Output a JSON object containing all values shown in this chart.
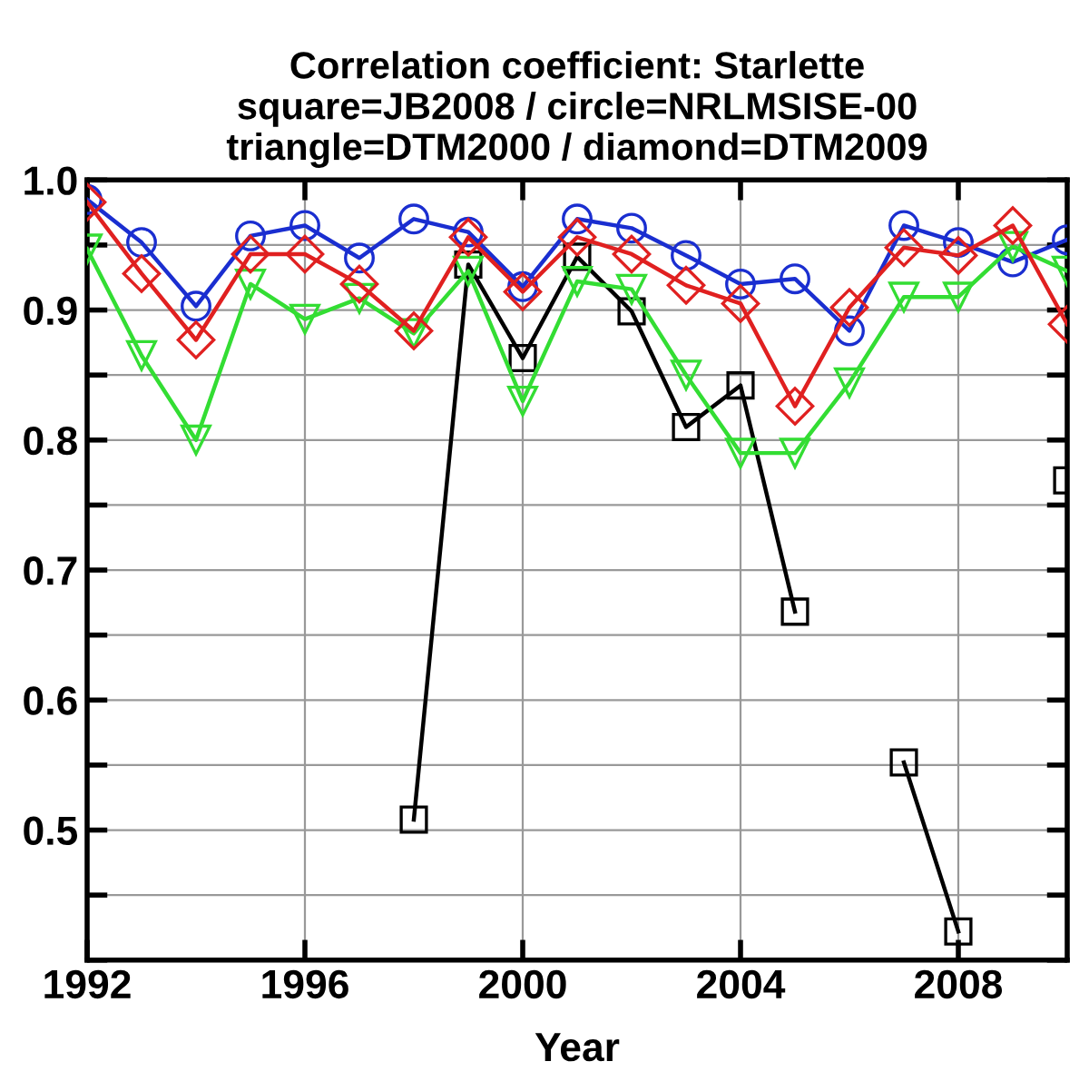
{
  "chart_data": {
    "type": "line",
    "title": "Correlation coefficient: Starlette\nsquare=JB2008 / circle=NRLMSISE-00\ntriangle=DTM2000 / diamond=DTM2009",
    "xlabel": "Year",
    "x": [
      1992,
      1993,
      1994,
      1995,
      1996,
      1997,
      1998,
      1999,
      2000,
      2001,
      2002,
      2003,
      2004,
      2005,
      2006,
      2007,
      2008,
      2009,
      2010
    ],
    "series": [
      {
        "color": "#1a2ed0",
        "marker": "circle",
        "values": [
          0.985,
          0.952,
          0.903,
          0.957,
          0.965,
          0.94,
          0.97,
          0.96,
          0.918,
          0.97,
          0.963,
          0.942,
          0.92,
          0.924,
          0.884,
          0.965,
          0.952,
          0.937,
          0.954
        ]
      },
      {
        "color": "#000000",
        "marker": "square",
        "values": [
          null,
          null,
          null,
          null,
          null,
          null,
          0.508,
          0.935,
          0.863,
          0.941,
          0.899,
          0.81,
          0.842,
          0.668,
          null,
          0.552,
          0.422,
          null,
          0.769
        ]
      },
      {
        "color": "#33dd33",
        "marker": "triangle",
        "values": [
          0.947,
          0.865,
          0.8,
          0.92,
          0.893,
          0.909,
          0.882,
          0.93,
          0.83,
          0.922,
          0.916,
          0.85,
          0.79,
          0.79,
          0.844,
          0.91,
          0.91,
          0.949,
          0.93
        ]
      },
      {
        "color": "#e02020",
        "marker": "diamond",
        "values": [
          0.983,
          0.928,
          0.877,
          0.943,
          0.943,
          0.92,
          0.884,
          0.956,
          0.914,
          0.956,
          0.943,
          0.919,
          0.905,
          0.826,
          0.902,
          0.948,
          0.942,
          0.965,
          0.889
        ]
      }
    ],
    "xlim": [
      1992,
      2010
    ],
    "xticks": [
      1992,
      1996,
      2000,
      2004,
      2008
    ],
    "ylim": [
      0.4,
      1.0
    ],
    "yticks": [
      {
        "value": 0.4,
        "label": null
      },
      {
        "value": 0.45,
        "label": null
      },
      0.5,
      {
        "value": 0.55,
        "label": null
      },
      0.6,
      {
        "value": 0.65,
        "label": null
      },
      0.7,
      {
        "value": 0.75,
        "label": null
      },
      0.8,
      {
        "value": 0.85,
        "label": null
      },
      0.9,
      {
        "value": 0.95,
        "label": null
      },
      {
        "value": 1.0,
        "label": "1.0"
      }
    ],
    "grid": true,
    "line_style": "solid",
    "legend": false
  }
}
